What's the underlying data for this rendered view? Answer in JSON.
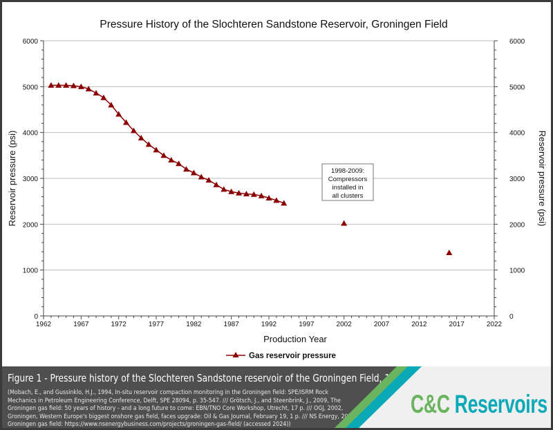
{
  "chart_data": {
    "type": "line",
    "title": "Pressure History of the Slochteren Sandstone Reservoir, Groningen Field",
    "xlabel": "Production Year",
    "ylabel": "Reservoir pressure (psi)",
    "ylabel_right": "Reservoir pressure (psi)",
    "xlim": [
      1962,
      2022
    ],
    "ylim": [
      0,
      6000
    ],
    "x_ticks": [
      "1962",
      "1967",
      "1972",
      "1977",
      "1982",
      "1987",
      "1992",
      "1997",
      "2002",
      "2007",
      "2012",
      "2017",
      "2022"
    ],
    "y_ticks": [
      "0",
      "1000",
      "2000",
      "3000",
      "4000",
      "5000",
      "6000"
    ],
    "grid": "horizontal",
    "legend_position": "bottom",
    "series": [
      {
        "name": "Gas reservoir pressure",
        "color": "#8b0000",
        "marker": "triangle",
        "x": [
          1963,
          1964,
          1965,
          1966,
          1967,
          1968,
          1969,
          1970,
          1971,
          1972,
          1973,
          1974,
          1975,
          1976,
          1977,
          1978,
          1979,
          1980,
          1981,
          1982,
          1983,
          1984,
          1985,
          1986,
          1987,
          1988,
          1989,
          1990,
          1991,
          1992,
          1993,
          1994
        ],
        "y": [
          5030,
          5030,
          5030,
          5020,
          5000,
          4950,
          4860,
          4760,
          4600,
          4400,
          4220,
          4040,
          3880,
          3740,
          3620,
          3500,
          3400,
          3320,
          3200,
          3120,
          3030,
          2960,
          2860,
          2760,
          2710,
          2680,
          2660,
          2650,
          2620,
          2570,
          2520,
          2460
        ]
      },
      {
        "name": "",
        "color": "#8b0000",
        "marker": "triangle",
        "connected": false,
        "x": [
          2002,
          2016
        ],
        "y": [
          2020,
          1380
        ]
      }
    ],
    "annotation": {
      "lines": [
        "1998-2009:",
        "Compressors",
        "installed in",
        "all clusters"
      ]
    }
  },
  "footer": {
    "caption": "Figure 1 - Pressure history of the Slochteren Sandstone reservoir of the Groningen Field, 1963-2023.",
    "references": "(Mobach, E., and Gussinklo, H.J., 1994, In-situ reservoir compaction monitoring in the Groningen field: SPE/ISRM Rock Mechanics in Petroleum Engineering Conference, Delft, SPE 28094, p. 35-547. /// Grötsch, J., and Steenbrink, J., 2009, The Groningen gas field: 50 years of history - and a long future to come: EBN/TNO Core Workshop, Utrecht, 17 p. /// OGJ, 2002, Groningen, Western Europe's biggest onshore gas field, faces upgrade: Oil & Gas Journal, February 19, 1 p. /// NS Energy, 2019, Groningen gas field: https://www.nsenergybusiness.com/projects/groningen-gas-field/ (accessed 2024))",
    "logo_part1": "C&C",
    "logo_part2": "Reservoirs",
    "logo_colors": {
      "green": "#6ab35f",
      "teal": "#0aa9b8"
    }
  }
}
